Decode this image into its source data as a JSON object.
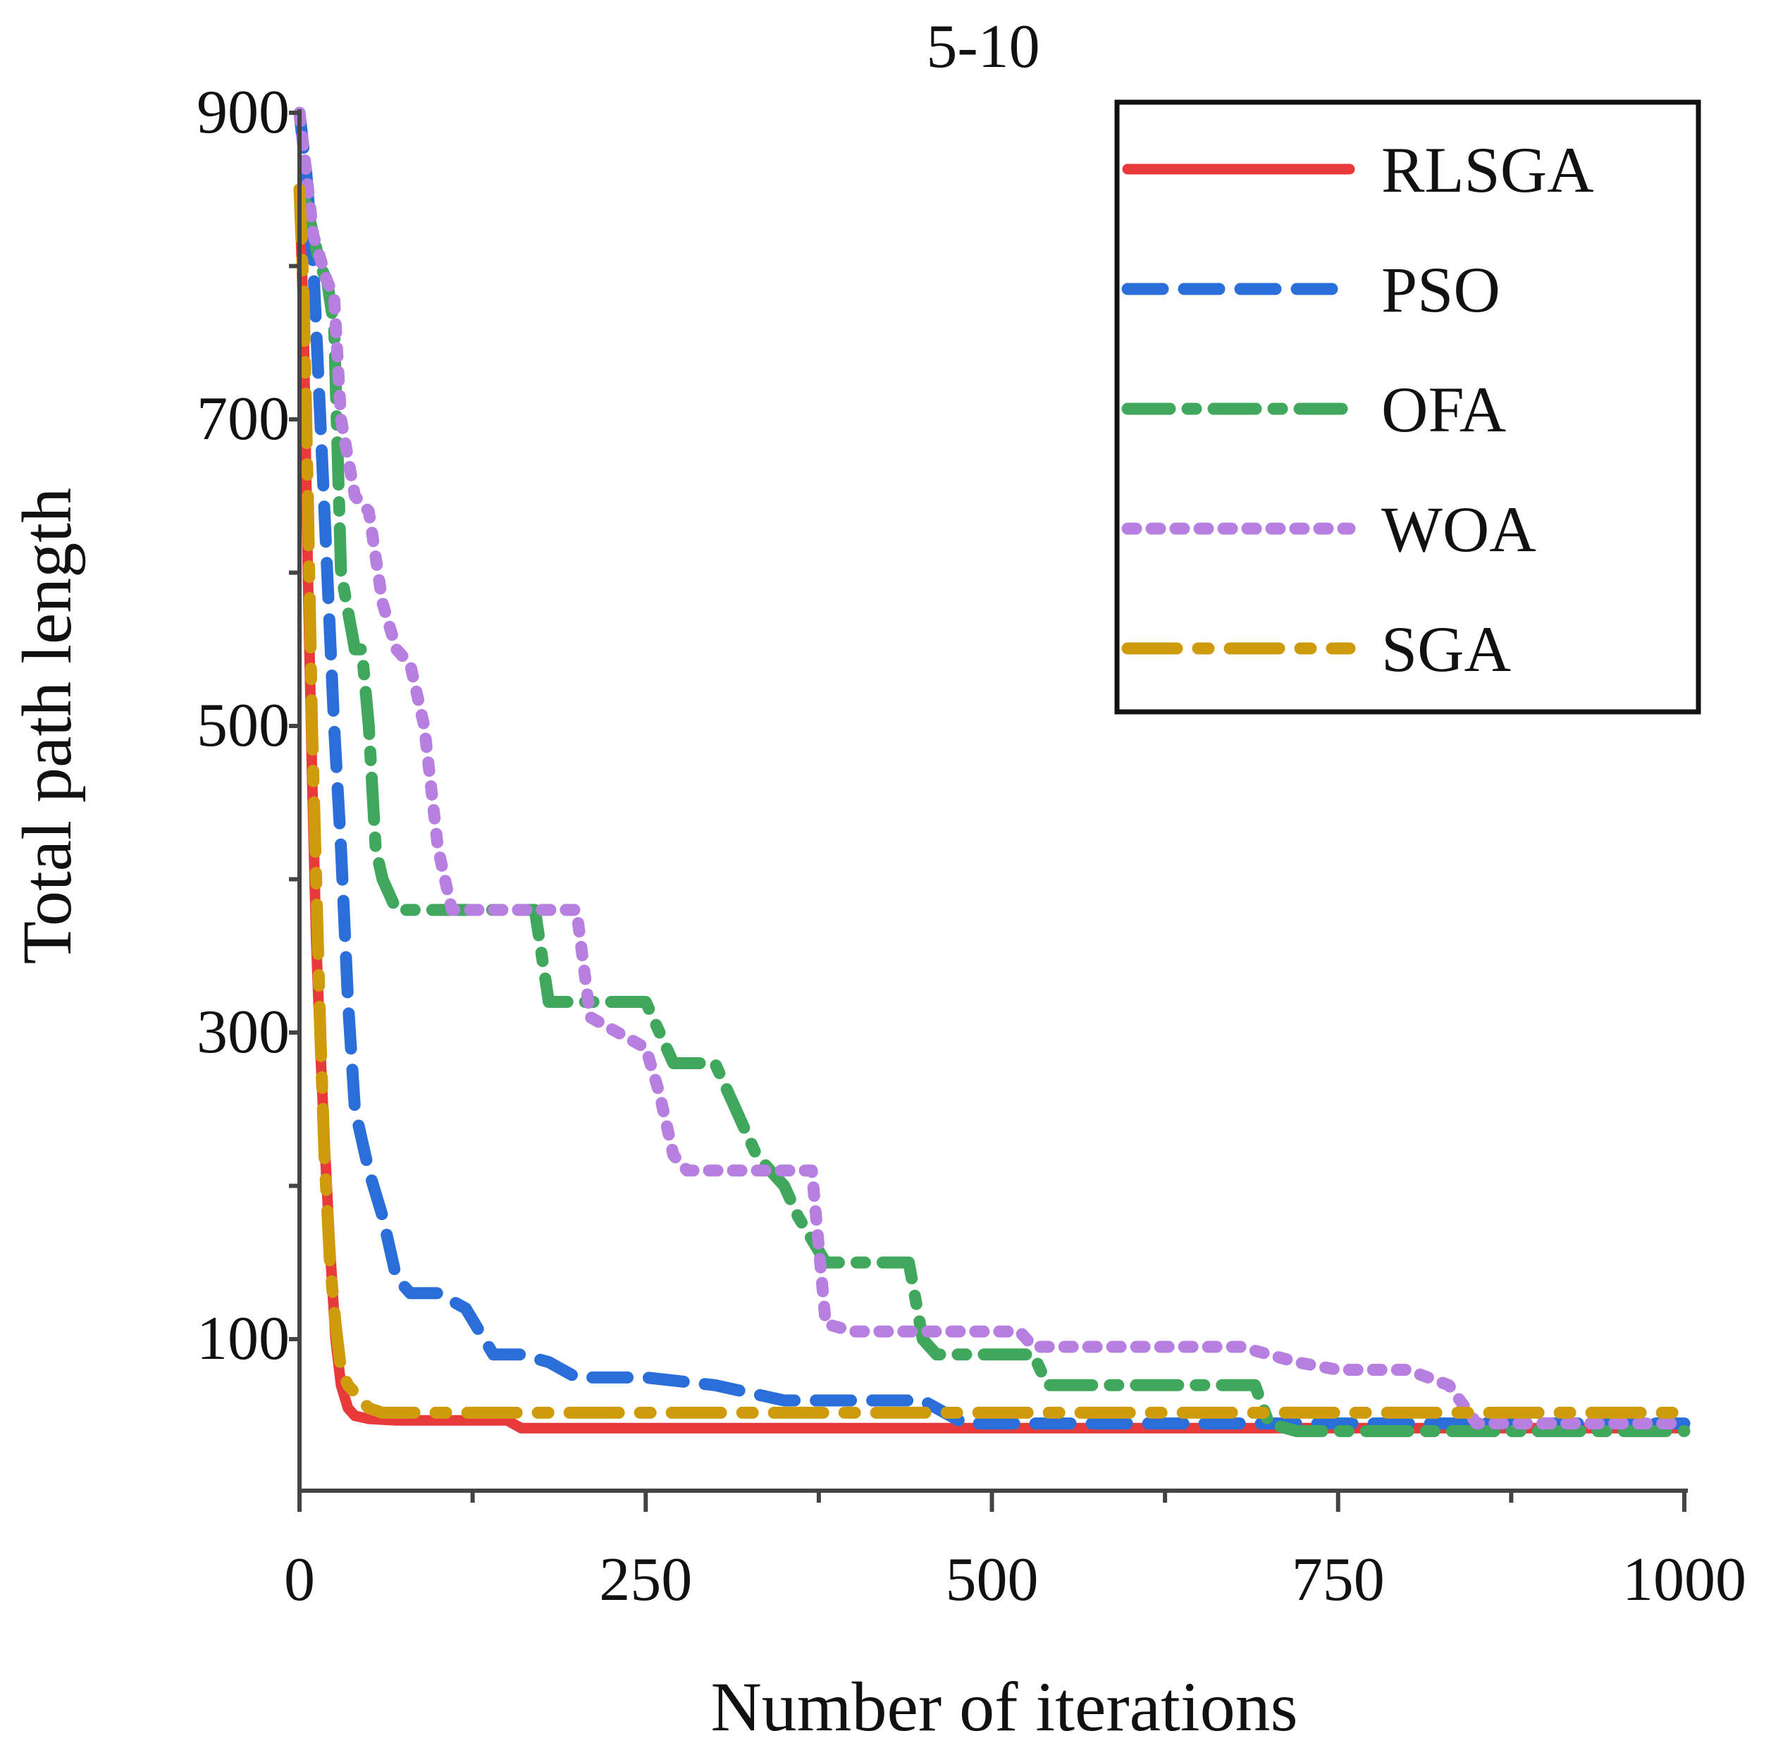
{
  "chart_data": {
    "type": "line",
    "title": "5-10",
    "xlabel": "Number of iterations",
    "ylabel": "Total path length",
    "xlim": [
      0,
      1000
    ],
    "ylim": [
      0,
      900
    ],
    "xticks": [
      0,
      250,
      500,
      750,
      1000
    ],
    "yticks": [
      100,
      300,
      500,
      700,
      900
    ],
    "legend_position": "top-right",
    "series": [
      {
        "name": "RLSGA",
        "color": "#e83a3a",
        "style": "solid",
        "x": [
          0,
          3,
          6,
          9,
          12,
          15,
          18,
          22,
          26,
          30,
          35,
          40,
          50,
          70,
          100,
          150,
          160,
          200,
          300,
          500,
          700,
          1000
        ],
        "y": [
          850,
          760,
          600,
          470,
          360,
          290,
          230,
          160,
          100,
          70,
          55,
          50,
          48,
          47,
          47,
          47,
          42,
          42,
          42,
          42,
          42,
          42
        ]
      },
      {
        "name": "PSO",
        "color": "#2a6fd9",
        "style": "dashed",
        "x": [
          0,
          5,
          10,
          15,
          20,
          25,
          30,
          35,
          40,
          50,
          60,
          70,
          80,
          100,
          120,
          140,
          160,
          180,
          200,
          250,
          300,
          350,
          400,
          450,
          480,
          500,
          550,
          600,
          650,
          700,
          750,
          800,
          850,
          900,
          1000
        ],
        "y": [
          900,
          860,
          800,
          700,
          600,
          500,
          420,
          320,
          250,
          210,
          180,
          140,
          130,
          130,
          120,
          90,
          90,
          85,
          75,
          75,
          70,
          60,
          60,
          60,
          45,
          45,
          45,
          45,
          45,
          45,
          45,
          45,
          45,
          45,
          45
        ]
      },
      {
        "name": "OFA",
        "color": "#3fa85c",
        "style": "dashdot",
        "x": [
          0,
          5,
          10,
          15,
          20,
          25,
          30,
          40,
          45,
          50,
          55,
          60,
          65,
          70,
          90,
          100,
          110,
          170,
          175,
          180,
          190,
          200,
          230,
          250,
          260,
          270,
          280,
          300,
          320,
          330,
          340,
          350,
          360,
          380,
          440,
          450,
          460,
          480,
          530,
          540,
          560,
          600,
          650,
          690,
          700,
          720,
          750,
          800,
          850,
          900,
          1000
        ],
        "y": [
          850,
          840,
          820,
          800,
          790,
          760,
          600,
          550,
          550,
          500,
          420,
          400,
          390,
          380,
          380,
          380,
          380,
          380,
          350,
          320,
          320,
          320,
          320,
          320,
          300,
          280,
          280,
          280,
          240,
          220,
          210,
          200,
          180,
          150,
          150,
          100,
          90,
          90,
          90,
          70,
          70,
          70,
          70,
          70,
          45,
          40,
          40,
          40,
          40,
          40,
          40
        ]
      },
      {
        "name": "WOA",
        "color": "#b77fe0",
        "style": "dotted",
        "x": [
          0,
          10,
          20,
          25,
          30,
          40,
          50,
          60,
          70,
          80,
          90,
          100,
          110,
          150,
          200,
          210,
          250,
          260,
          270,
          280,
          300,
          340,
          370,
          375,
          380,
          400,
          450,
          500,
          520,
          530,
          550,
          600,
          680,
          700,
          720,
          750,
          800,
          830,
          850,
          900,
          1000
        ],
        "y": [
          900,
          820,
          790,
          780,
          700,
          650,
          640,
          580,
          550,
          540,
          500,
          420,
          380,
          380,
          380,
          310,
          290,
          260,
          220,
          210,
          210,
          210,
          210,
          160,
          110,
          105,
          105,
          105,
          105,
          95,
          95,
          95,
          95,
          90,
          85,
          80,
          80,
          70,
          45,
          45,
          45
        ]
      },
      {
        "name": "SGA",
        "color": "#cf9b0c",
        "style": "longdashdot",
        "x": [
          0,
          3,
          6,
          9,
          12,
          15,
          18,
          22,
          26,
          30,
          35,
          40,
          50,
          60,
          70,
          100,
          200,
          300,
          500,
          700,
          850,
          1000
        ],
        "y": [
          850,
          780,
          650,
          500,
          400,
          300,
          220,
          150,
          110,
          80,
          70,
          65,
          55,
          52,
          52,
          52,
          52,
          52,
          52,
          52,
          52,
          52
        ]
      }
    ]
  }
}
